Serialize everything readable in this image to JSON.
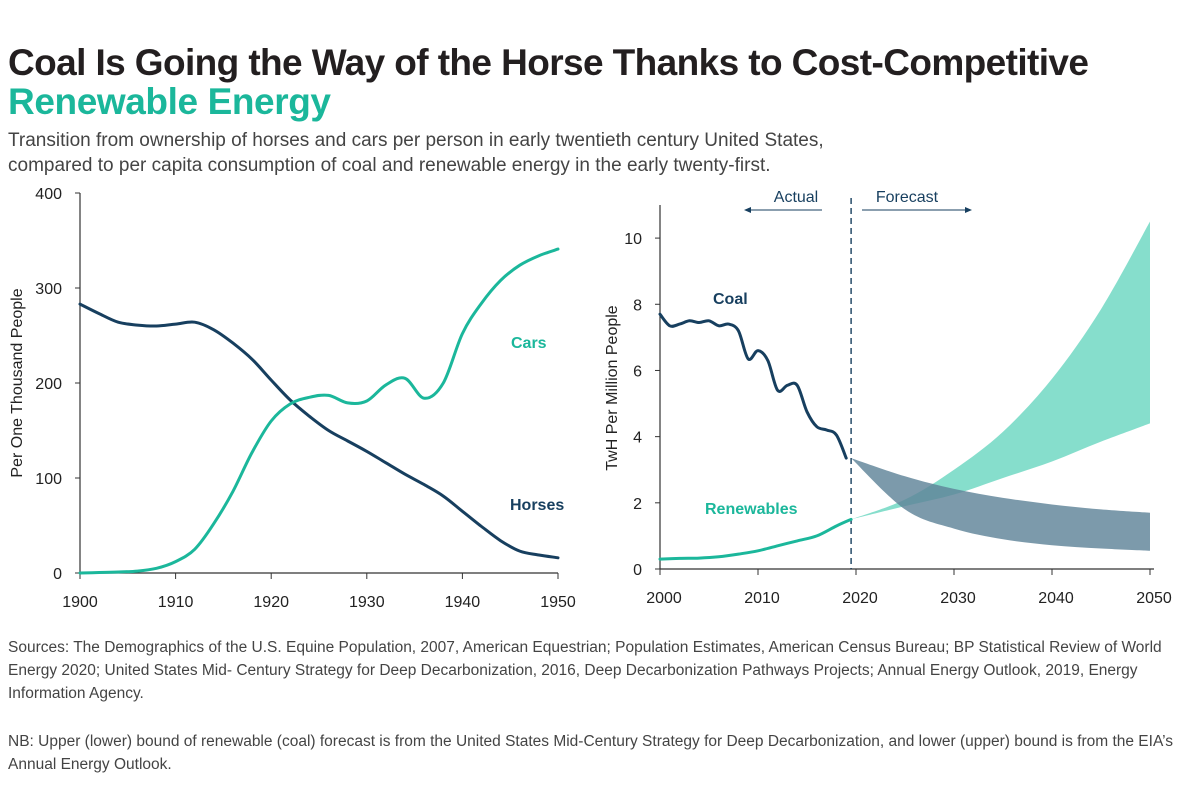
{
  "title_line1": "Coal Is Going the Way of the Horse Thanks to Cost-Competitive",
  "title_line2": "Renewable Energy",
  "subtitle_line1": "Transition from ownership of horses and cars per person in early twentieth century United States,",
  "subtitle_line2": "compared to per capita consumption of coal and renewable energy in the early twenty-first.",
  "sources": "Sources: The Demographics of the U.S. Equine Population, 2007, American Equestrian; Population Estimates, American Census Bureau; BP Statistical Review of World Energy 2020; United States Mid- Century Strategy for Deep Decarbonization, 2016, Deep Decarbonization Pathways Projects; Annual Energy Outlook, 2019, Energy Information Agency.",
  "nb": "NB: Upper (lower) bound of renewable  (coal) forecast is from the United States Mid-Century Strategy for Deep Decarbonization, and lower (upper) bound is from the EIA’s Annual  Energy Outlook.",
  "colors": {
    "navy": "#173f5f",
    "teal": "#1bb79b",
    "teal_band": "#7fdcc9",
    "coal_band": "#5f8499",
    "axis": "#333333"
  },
  "chart_data": [
    {
      "type": "line",
      "ylabel": "Per One Thousand People",
      "xlabel": "",
      "xlim": [
        1900,
        1950
      ],
      "ylim": [
        0,
        400
      ],
      "x_ticks": [
        1900,
        1910,
        1920,
        1930,
        1940,
        1950
      ],
      "y_ticks": [
        0,
        100,
        200,
        300,
        400
      ],
      "series": [
        {
          "name": "Horses",
          "color": "#173f5f",
          "points": [
            [
              1900,
              283
            ],
            [
              1902,
              273
            ],
            [
              1904,
              264
            ],
            [
              1906,
              261
            ],
            [
              1908,
              260
            ],
            [
              1910,
              262
            ],
            [
              1912,
              264
            ],
            [
              1914,
              256
            ],
            [
              1916,
              242
            ],
            [
              1918,
              225
            ],
            [
              1920,
              203
            ],
            [
              1922,
              182
            ],
            [
              1924,
              165
            ],
            [
              1926,
              150
            ],
            [
              1928,
              139
            ],
            [
              1930,
              128
            ],
            [
              1932,
              116
            ],
            [
              1934,
              104
            ],
            [
              1936,
              93
            ],
            [
              1938,
              81
            ],
            [
              1940,
              65
            ],
            [
              1942,
              49
            ],
            [
              1944,
              34
            ],
            [
              1946,
              23
            ],
            [
              1948,
              19
            ],
            [
              1950,
              16
            ]
          ]
        },
        {
          "name": "Cars",
          "color": "#1bb79b",
          "points": [
            [
              1900,
              0
            ],
            [
              1902,
              0.5
            ],
            [
              1904,
              1
            ],
            [
              1906,
              2
            ],
            [
              1908,
              5
            ],
            [
              1910,
              12
            ],
            [
              1912,
              25
            ],
            [
              1914,
              52
            ],
            [
              1916,
              86
            ],
            [
              1918,
              127
            ],
            [
              1920,
              160
            ],
            [
              1922,
              178
            ],
            [
              1924,
              185
            ],
            [
              1926,
              187
            ],
            [
              1928,
              179
            ],
            [
              1930,
              181
            ],
            [
              1932,
              198
            ],
            [
              1934,
              205
            ],
            [
              1936,
              184
            ],
            [
              1938,
              200
            ],
            [
              1940,
              252
            ],
            [
              1942,
              284
            ],
            [
              1944,
              308
            ],
            [
              1946,
              324
            ],
            [
              1948,
              334
            ],
            [
              1950,
              341
            ]
          ]
        }
      ]
    },
    {
      "type": "line",
      "ylabel": "TwH Per Million People",
      "xlabel": "",
      "xlim": [
        2000,
        2050
      ],
      "ylim": [
        0,
        11
      ],
      "x_ticks": [
        2000,
        2010,
        2020,
        2030,
        2040,
        2050
      ],
      "y_ticks": [
        0,
        2,
        4,
        6,
        8,
        10
      ],
      "annotation_actual": "Actual",
      "annotation_forecast": "Forecast",
      "divider_year": 2019.5,
      "series": [
        {
          "name": "Coal",
          "color": "#173f5f",
          "points": [
            [
              2000,
              7.7
            ],
            [
              2001,
              7.35
            ],
            [
              2002,
              7.4
            ],
            [
              2003,
              7.5
            ],
            [
              2004,
              7.45
            ],
            [
              2005,
              7.5
            ],
            [
              2006,
              7.35
            ],
            [
              2007,
              7.4
            ],
            [
              2008,
              7.2
            ],
            [
              2009,
              6.35
            ],
            [
              2010,
              6.6
            ],
            [
              2011,
              6.3
            ],
            [
              2012,
              5.4
            ],
            [
              2013,
              5.55
            ],
            [
              2014,
              5.55
            ],
            [
              2015,
              4.75
            ],
            [
              2016,
              4.3
            ],
            [
              2017,
              4.2
            ],
            [
              2018,
              4.05
            ],
            [
              2019,
              3.35
            ]
          ]
        },
        {
          "name": "Renewables",
          "color": "#1bb79b",
          "points": [
            [
              2000,
              0.3
            ],
            [
              2002,
              0.32
            ],
            [
              2004,
              0.33
            ],
            [
              2006,
              0.37
            ],
            [
              2008,
              0.45
            ],
            [
              2010,
              0.55
            ],
            [
              2012,
              0.7
            ],
            [
              2014,
              0.85
            ],
            [
              2016,
              1.0
            ],
            [
              2018,
              1.3
            ],
            [
              2019.5,
              1.5
            ]
          ]
        }
      ],
      "forecast_bands": [
        {
          "name": "Renewables forecast",
          "color": "#7fdcc9",
          "years": [
            2019.5,
            2025,
            2030,
            2035,
            2040,
            2045,
            2050
          ],
          "upper": [
            1.5,
            2.1,
            3.0,
            4.15,
            5.75,
            7.85,
            10.5
          ],
          "lower": [
            1.5,
            1.9,
            2.25,
            2.75,
            3.25,
            3.85,
            4.4
          ]
        },
        {
          "name": "Coal forecast",
          "color": "#5f8499",
          "years": [
            2019.5,
            2025,
            2030,
            2035,
            2040,
            2045,
            2050
          ],
          "upper": [
            3.35,
            2.8,
            2.42,
            2.15,
            1.95,
            1.8,
            1.7
          ],
          "lower": [
            3.35,
            1.8,
            1.22,
            0.9,
            0.72,
            0.62,
            0.55
          ]
        }
      ]
    }
  ]
}
